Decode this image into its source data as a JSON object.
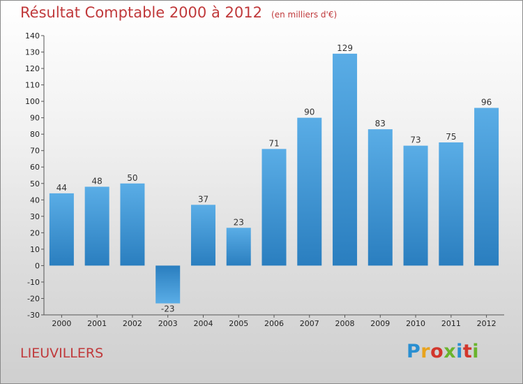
{
  "title": "Résultat Comptable 2000 à 2012",
  "subtitle": "(en milliers d'€)",
  "location": "LIEUVILLERS",
  "logo": {
    "text": "Proxiti",
    "colors": [
      "#2a8fd1",
      "#e8a31d",
      "#d2362c",
      "#6ab42d",
      "#2a8fd1",
      "#d2362c",
      "#6ab42d"
    ]
  },
  "colors": {
    "bar_light": "#5aade6",
    "bar_dark": "#2a7fc0",
    "title": "#c0393b"
  },
  "chart_data": {
    "type": "bar",
    "title": "Résultat Comptable 2000 à 2012",
    "subtitle": "(en milliers d'€)",
    "categories": [
      "2000",
      "2001",
      "2002",
      "2003",
      "2004",
      "2005",
      "2006",
      "2007",
      "2008",
      "2009",
      "2010",
      "2011",
      "2012"
    ],
    "values": [
      44,
      48,
      50,
      -23,
      37,
      23,
      71,
      90,
      129,
      83,
      73,
      75,
      96
    ],
    "ylim": [
      -30,
      140
    ],
    "yticks": [
      -30,
      -20,
      -10,
      0,
      10,
      20,
      30,
      40,
      50,
      60,
      70,
      80,
      90,
      100,
      110,
      120,
      130,
      140
    ],
    "xlabel": "",
    "ylabel": "",
    "grid": false
  }
}
